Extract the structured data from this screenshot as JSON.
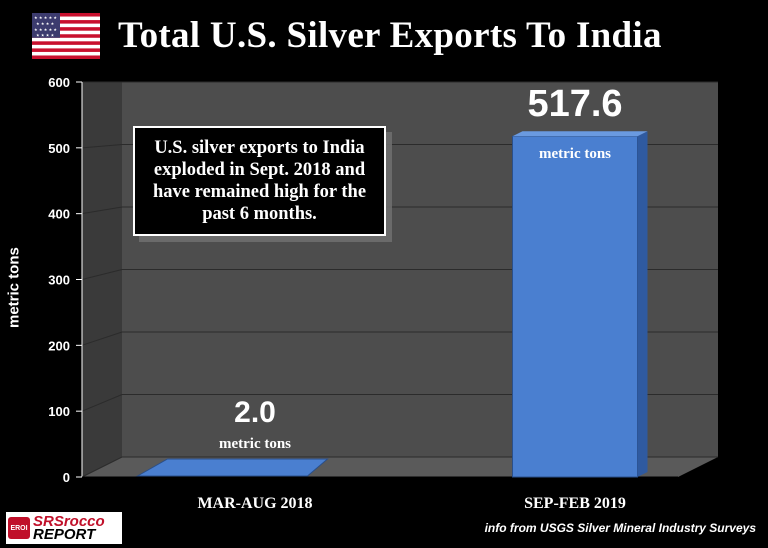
{
  "title": "Total U.S. Silver Exports To India",
  "annotation": "U.S. silver exports to India exploded in Sept. 2018 and have remained high for the past 6 months.",
  "logo": {
    "badge": "EROI",
    "line1": "SRSrocco",
    "line2": "REPORT"
  },
  "source": "info from USGS Silver Mineral Industry Surveys",
  "colors": {
    "bar": "#4a7fd0",
    "background": "#000000",
    "wall": "#505050",
    "text": "#ffffff"
  },
  "chart_data": {
    "type": "bar",
    "title": "Total U.S. Silver Exports To India",
    "ylabel": "metric tons",
    "xlabel": "",
    "categories": [
      "MAR-AUG 2018",
      "SEP-FEB 2019"
    ],
    "values": [
      2.0,
      517.6
    ],
    "value_labels": [
      "2.0",
      "517.6"
    ],
    "unit_labels": [
      "metric tons",
      "metric tons"
    ],
    "ylim": [
      0,
      600
    ],
    "yticks": [
      0,
      100,
      200,
      300,
      400,
      500,
      600
    ],
    "grid": true,
    "legend": "none",
    "style": "3d-perspective"
  }
}
